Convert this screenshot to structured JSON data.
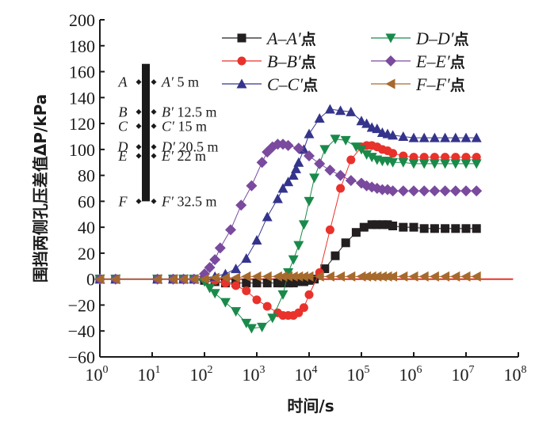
{
  "chart_data": {
    "type": "line",
    "title": "",
    "xlabel": "时间/s",
    "ylabel": "围挡两侧孔压差值ΔP/kPa",
    "xscale": "log",
    "xlim_exponent": [
      0,
      8
    ],
    "ylim": [
      -60,
      200
    ],
    "x_tick_base": "10",
    "x_tick_exponents": [
      "0",
      "1",
      "2",
      "3",
      "4",
      "5",
      "6",
      "7",
      "8"
    ],
    "y_ticks": [
      "-60",
      "-40",
      "-20",
      "0",
      "20",
      "40",
      "60",
      "80",
      "100",
      "120",
      "140",
      "160",
      "180",
      "200"
    ],
    "grid": false,
    "legend_position": "top-right",
    "zero_reference_line": {
      "color": "#e8322b",
      "value": 0,
      "x_end_exponent": 7.9
    },
    "series": [
      {
        "name": "A–A′点",
        "label_main": "A–A′",
        "label_suffix": "点",
        "color": "#231f20",
        "marker": "square",
        "log_t": [
          0,
          0.3,
          1.1,
          1.4,
          1.6,
          1.8,
          2.0,
          2.2,
          2.4,
          2.6,
          2.8,
          3.0,
          3.2,
          3.4,
          3.5,
          3.6,
          3.7,
          3.8,
          3.9,
          4.0,
          4.1,
          4.3,
          4.5,
          4.7,
          4.9,
          5.05,
          5.2,
          5.3,
          5.4,
          5.5,
          5.6,
          5.8,
          6.0,
          6.2,
          6.4,
          6.6,
          6.8,
          7.0,
          7.2
        ],
        "values": [
          0,
          0,
          0,
          0,
          0,
          0,
          -1,
          -2,
          -3,
          -3,
          -3,
          -3,
          -3,
          -3,
          -3,
          -3,
          -3,
          -2,
          -2,
          -1,
          0,
          8,
          18,
          28,
          36,
          40,
          42,
          42,
          42,
          42,
          41,
          40,
          40,
          39,
          39,
          39,
          39,
          39,
          39
        ]
      },
      {
        "name": "B–B′点",
        "label_main": "B–B′",
        "label_suffix": "点",
        "color": "#e8322b",
        "marker": "circle",
        "log_t": [
          0,
          0.3,
          1.1,
          1.4,
          1.6,
          1.8,
          2.0,
          2.2,
          2.4,
          2.6,
          2.8,
          3.0,
          3.2,
          3.4,
          3.5,
          3.6,
          3.7,
          3.8,
          3.9,
          4.0,
          4.2,
          4.4,
          4.6,
          4.8,
          5.0,
          5.1,
          5.2,
          5.3,
          5.4,
          5.5,
          5.6,
          5.8,
          6.0,
          6.2,
          6.4,
          6.6,
          6.8,
          7.0,
          7.2
        ],
        "values": [
          0,
          0,
          0,
          0,
          0,
          0,
          0,
          -1,
          -3,
          -5,
          -9,
          -16,
          -21,
          -26,
          -28,
          -28,
          -28,
          -26,
          -22,
          -12,
          5,
          38,
          70,
          92,
          102,
          103,
          103,
          102,
          100,
          99,
          97,
          95,
          94,
          94,
          94,
          94,
          94,
          94,
          94
        ]
      },
      {
        "name": "C–C′点",
        "label_main": "C–C′",
        "label_suffix": "点",
        "color": "#34348c",
        "marker": "triangle-up",
        "log_t": [
          0,
          0.3,
          1.1,
          1.4,
          1.6,
          1.8,
          2.0,
          2.2,
          2.4,
          2.6,
          2.8,
          3.0,
          3.2,
          3.4,
          3.5,
          3.6,
          3.7,
          3.75,
          3.8,
          3.9,
          4.0,
          4.2,
          4.4,
          4.6,
          4.8,
          5.0,
          5.1,
          5.2,
          5.3,
          5.4,
          5.5,
          5.6,
          5.8,
          6.0,
          6.2,
          6.4,
          6.6,
          6.8,
          7.0,
          7.2
        ],
        "values": [
          0,
          0,
          0,
          0,
          0,
          0,
          1,
          2,
          4,
          8,
          16,
          30,
          48,
          62,
          70,
          75,
          80,
          85,
          90,
          100,
          112,
          124,
          131,
          130,
          129,
          122,
          120,
          117,
          116,
          113,
          112,
          111,
          110,
          109,
          109,
          109,
          109,
          109,
          109,
          109
        ]
      },
      {
        "name": "D–D′点",
        "label_main": "D–D′",
        "label_suffix": "点",
        "color": "#1a8a4a",
        "marker": "triangle-down",
        "log_t": [
          0,
          0.3,
          1.1,
          1.4,
          1.6,
          1.8,
          2.0,
          2.1,
          2.2,
          2.4,
          2.6,
          2.8,
          2.9,
          3.1,
          3.3,
          3.5,
          3.6,
          3.7,
          3.8,
          3.9,
          4.0,
          4.1,
          4.3,
          4.5,
          4.7,
          4.9,
          5.0,
          5.1,
          5.2,
          5.3,
          5.4,
          5.5,
          5.6,
          5.8,
          6.0,
          6.2,
          6.4,
          6.6,
          6.8,
          7.0,
          7.2
        ],
        "values": [
          0,
          0,
          0,
          0,
          0,
          0,
          -2,
          -7,
          -11,
          -18,
          -25,
          -34,
          -38,
          -37,
          -30,
          -12,
          5,
          15,
          26,
          42,
          60,
          78,
          100,
          108,
          107,
          102,
          100,
          96,
          94,
          92,
          91,
          91,
          90,
          90,
          89,
          89,
          89,
          89,
          89,
          89,
          89
        ]
      },
      {
        "name": "E–E′点",
        "label_main": "E–E′",
        "label_suffix": "点",
        "color": "#7a4a9e",
        "marker": "diamond",
        "log_t": [
          0,
          0.3,
          1.1,
          1.4,
          1.6,
          1.8,
          2.0,
          2.1,
          2.2,
          2.3,
          2.5,
          2.7,
          2.9,
          3.1,
          3.2,
          3.3,
          3.4,
          3.5,
          3.6,
          3.8,
          4.0,
          4.2,
          4.4,
          4.6,
          4.8,
          5.0,
          5.1,
          5.2,
          5.3,
          5.4,
          5.5,
          5.6,
          5.8,
          6.0,
          6.2,
          6.4,
          6.6,
          6.8,
          7.0,
          7.2
        ],
        "values": [
          0,
          0,
          0,
          0,
          0,
          0,
          4,
          9,
          15,
          24,
          38,
          57,
          72,
          90,
          98,
          102,
          104,
          104,
          103,
          101,
          95,
          89,
          84,
          80,
          76,
          74,
          72,
          71,
          70,
          69,
          69,
          68,
          68,
          68,
          68,
          68,
          68,
          68,
          68,
          68
        ]
      },
      {
        "name": "F–F′点",
        "label_main": "F–F′",
        "label_suffix": "点",
        "color": "#a66a2c",
        "marker": "triangle-left",
        "log_t": [
          0,
          0.3,
          1.1,
          1.4,
          1.6,
          1.8,
          2.0,
          2.2,
          2.4,
          2.6,
          2.8,
          3.0,
          3.2,
          3.4,
          3.5,
          3.6,
          3.7,
          3.8,
          3.9,
          4.0,
          4.2,
          4.4,
          4.6,
          4.8,
          5.0,
          5.1,
          5.2,
          5.3,
          5.4,
          5.5,
          5.6,
          5.8,
          6.0,
          6.2,
          6.4,
          6.6,
          6.8,
          7.0,
          7.2
        ],
        "values": [
          0,
          0,
          0,
          0,
          0,
          0,
          0,
          1,
          1,
          1,
          2,
          2,
          2,
          2,
          2,
          2,
          2,
          2,
          2,
          2,
          2,
          2,
          2,
          2,
          2,
          2,
          2,
          2,
          2,
          2,
          2,
          2,
          2,
          2,
          2,
          2,
          2,
          2,
          2
        ]
      }
    ]
  },
  "inset": {
    "rows": [
      {
        "left": "A",
        "right": "A′",
        "depth": "5 m",
        "y_value": 152
      },
      {
        "left": "B",
        "right": "B′",
        "depth": "12.5 m",
        "y_value": 129
      },
      {
        "left": "C",
        "right": "C′",
        "depth": "15 m",
        "y_value": 118
      },
      {
        "left": "D",
        "right": "D′",
        "depth": "20.5 m",
        "y_value": 102
      },
      {
        "left": "E",
        "right": "E′",
        "depth": "22 m",
        "y_value": 95
      },
      {
        "left": "F",
        "right": "F′",
        "depth": "32.5 m",
        "y_value": 60
      }
    ],
    "wall_top_value": 166,
    "wall_bottom_value": 60
  }
}
